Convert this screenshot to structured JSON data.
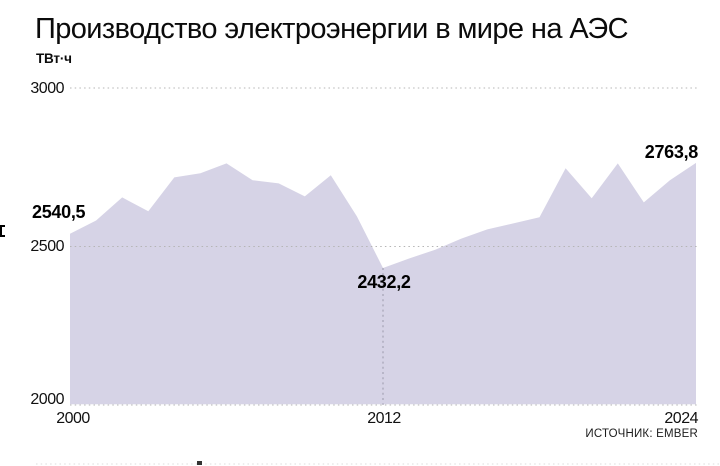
{
  "header": {
    "title": "Производство электроэнергии в мире на АЭС",
    "unit": "ТВт·ч"
  },
  "source": "ИСТОЧНИК: EMBER",
  "colors": {
    "area_fill": "#d6d3e6",
    "gridline": "#b5b5b5",
    "min_dashline": "#9b99aa",
    "text": "#0b0b0b"
  },
  "y_axis": {
    "ticks": [
      {
        "label": "3000",
        "value": 3000
      },
      {
        "label": "2500",
        "value": 2500
      },
      {
        "label": "2000",
        "value": 2000
      }
    ]
  },
  "x_axis": {
    "ticks": [
      {
        "label": "2000",
        "value": 2000
      },
      {
        "label": "2012",
        "value": 2012
      },
      {
        "label": "2024",
        "value": 2024
      }
    ]
  },
  "annotations": [
    {
      "year": 2000,
      "value": 2540.5,
      "label": "2540,5"
    },
    {
      "year": 2012,
      "value": 2432.2,
      "label": "2432,2"
    },
    {
      "year": 2024,
      "value": 2763.8,
      "label": "2763,8"
    }
  ],
  "chart_data": {
    "type": "area",
    "title": "Производство электроэнергии в мире на АЭС",
    "ylabel": "ТВт·ч",
    "x": [
      2000,
      2001,
      2002,
      2003,
      2004,
      2005,
      2006,
      2007,
      2008,
      2009,
      2010,
      2011,
      2012,
      2013,
      2014,
      2015,
      2016,
      2017,
      2018,
      2019,
      2020,
      2021,
      2022,
      2023,
      2024
    ],
    "values": [
      2540.5,
      2582,
      2655,
      2611,
      2718,
      2731,
      2762,
      2709,
      2699,
      2658,
      2725,
      2595,
      2432.2,
      2462,
      2490,
      2525,
      2554,
      2573,
      2592,
      2747,
      2652,
      2762,
      2639,
      2709,
      2763.8
    ],
    "xlim": [
      2000,
      2024
    ],
    "ylim": [
      2000,
      3000
    ],
    "gridlines_y": [
      2000,
      2500,
      3000
    ],
    "grid": "dotted-horizontal",
    "legend": false,
    "annotated_points": [
      {
        "x": 2000,
        "y": 2540.5,
        "label": "2540,5"
      },
      {
        "x": 2012,
        "y": 2432.2,
        "label": "2432,2",
        "dashline_to_axis": true
      },
      {
        "x": 2024,
        "y": 2763.8,
        "label": "2763,8"
      }
    ],
    "source": "EMBER"
  }
}
